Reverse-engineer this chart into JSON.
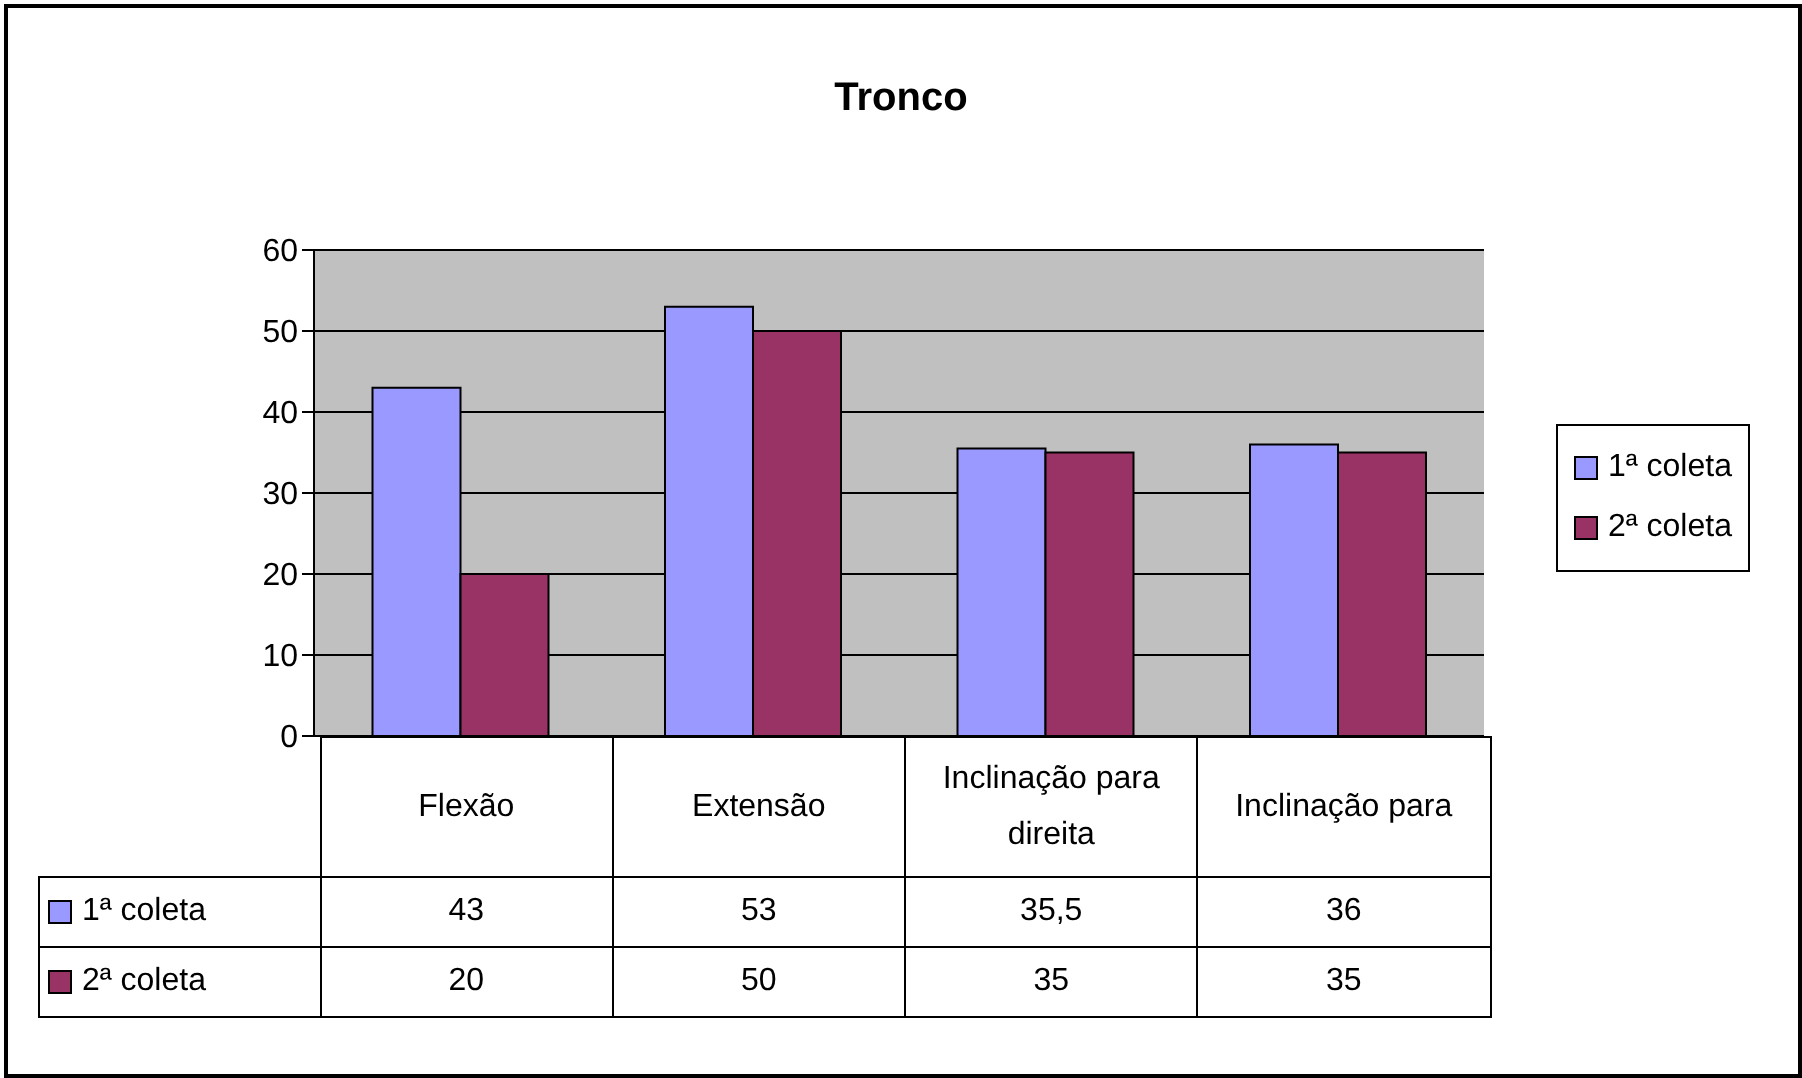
{
  "chart_data": {
    "type": "bar",
    "title": "Tronco",
    "categories": [
      "Flexão",
      "Extensão",
      "Inclinação para direita",
      "Inclinação para"
    ],
    "series": [
      {
        "name": "1ª coleta",
        "color": "#9999ff",
        "values": [
          43,
          53,
          35.5,
          36
        ],
        "value_labels": [
          "43",
          "53",
          "35,5",
          "36"
        ]
      },
      {
        "name": "2ª coleta",
        "color": "#993366",
        "values": [
          20,
          50,
          35,
          35
        ],
        "value_labels": [
          "20",
          "50",
          "35",
          "35"
        ]
      }
    ],
    "ylim": [
      0,
      60
    ],
    "yticks": [
      0,
      10,
      20,
      30,
      40,
      50,
      60
    ],
    "grid": "y",
    "legend": "right"
  }
}
